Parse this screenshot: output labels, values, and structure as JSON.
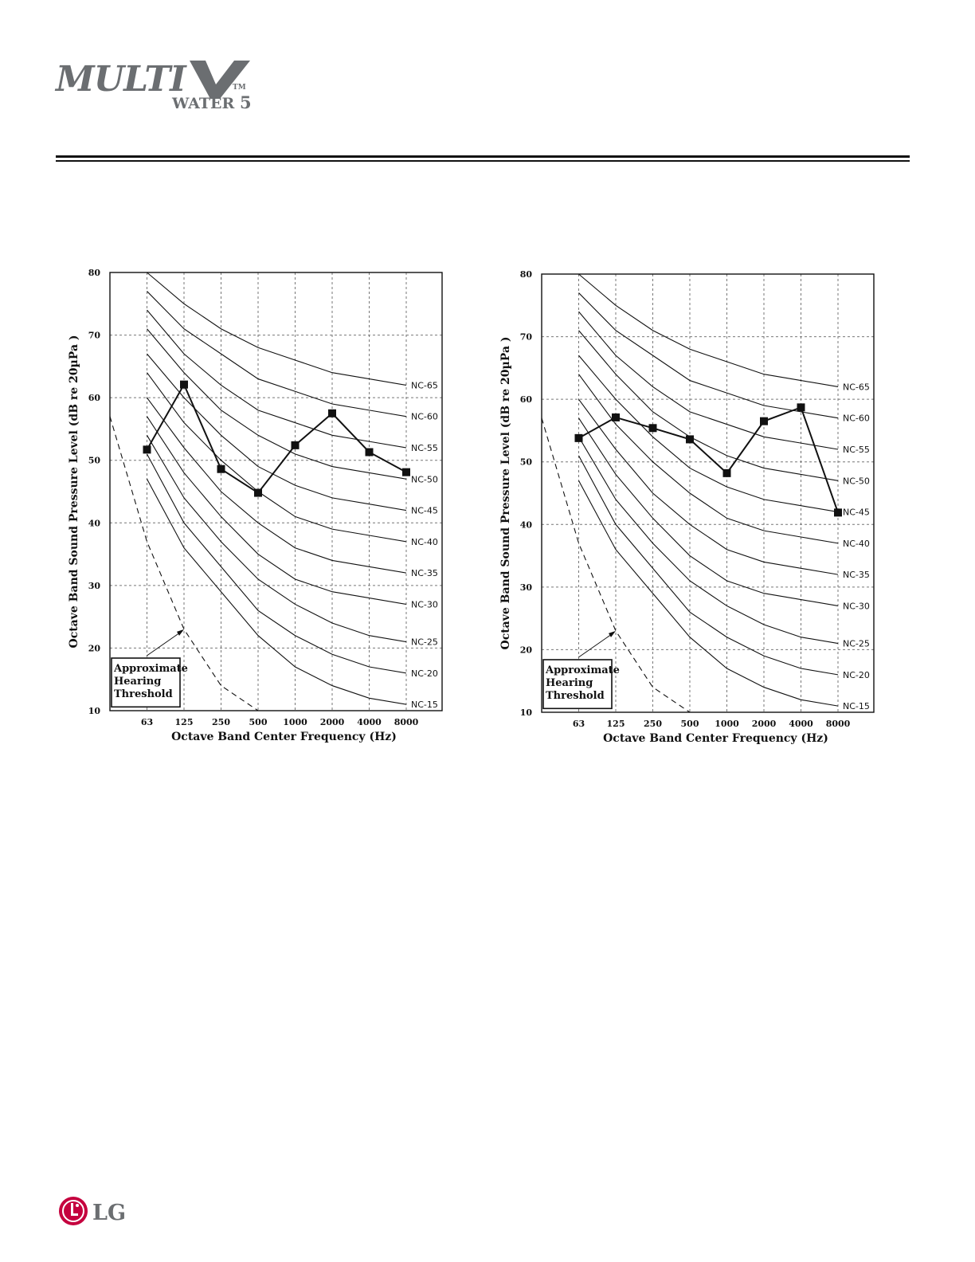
{
  "logo": {
    "brand": "MULTI V",
    "sub": "WATER 5",
    "tm": "TM"
  },
  "footer": {
    "brand": "LG"
  },
  "chart_data": [
    {
      "type": "line",
      "categories": [
        "63",
        "125",
        "250",
        "500",
        "1000",
        "2000",
        "4000",
        "8000"
      ],
      "xlabel": "Octave Band Center Frequency (Hz)",
      "ylabel": "Octave Band Sound Pressure Level (dB re 20µPa )",
      "ylim": [
        10,
        80
      ],
      "yticks": [
        "10",
        "20",
        "30",
        "40",
        "50",
        "60",
        "70",
        "80"
      ],
      "grid": true,
      "series": [
        {
          "values": [
            51.7,
            62.1,
            48.6,
            44.8,
            52.4,
            57.5,
            51.3,
            48.1
          ]
        }
      ],
      "nc_curves": [
        {
          "name": "NC-65",
          "values": [
            80,
            75,
            71,
            68,
            66,
            64,
            63,
            62
          ]
        },
        {
          "name": "NC-60",
          "values": [
            77,
            71,
            67,
            63,
            61,
            59,
            58,
            57
          ]
        },
        {
          "name": "NC-55",
          "values": [
            74,
            67,
            62,
            58,
            56,
            54,
            53,
            52
          ]
        },
        {
          "name": "NC-50",
          "values": [
            71,
            64,
            58,
            54,
            51,
            49,
            48,
            47
          ]
        },
        {
          "name": "NC-45",
          "values": [
            67,
            60,
            54,
            49,
            46,
            44,
            43,
            42
          ]
        },
        {
          "name": "NC-40",
          "values": [
            64,
            56,
            50,
            45,
            41,
            39,
            38,
            37
          ]
        },
        {
          "name": "NC-35",
          "values": [
            60,
            52,
            45,
            40,
            36,
            34,
            33,
            32
          ]
        },
        {
          "name": "NC-30",
          "values": [
            57,
            48,
            41,
            35,
            31,
            29,
            28,
            27
          ]
        },
        {
          "name": "NC-25",
          "values": [
            54,
            44,
            37,
            31,
            27,
            24,
            22,
            21
          ]
        },
        {
          "name": "NC-20",
          "values": [
            51,
            40,
            33,
            26,
            22,
            19,
            17,
            16
          ]
        },
        {
          "name": "NC-15",
          "values": [
            47,
            36,
            29,
            22,
            17,
            14,
            12,
            11
          ]
        }
      ],
      "hearing_threshold": {
        "values": [
          37,
          23,
          14,
          10
        ]
      },
      "annotation": {
        "lines": [
          "Approximate",
          "Hearing",
          "Threshold"
        ]
      }
    },
    {
      "type": "line",
      "categories": [
        "63",
        "125",
        "250",
        "500",
        "1000",
        "2000",
        "4000",
        "8000"
      ],
      "xlabel": "Octave Band Center Frequency (Hz)",
      "ylabel": "Octave Band Sound Pressure Level (dB re 20µPa )",
      "ylim": [
        10,
        80
      ],
      "yticks": [
        "10",
        "20",
        "30",
        "40",
        "50",
        "60",
        "70",
        "80"
      ],
      "grid": true,
      "series": [
        {
          "values": [
            53.8,
            57.1,
            55.4,
            53.6,
            48.2,
            56.5,
            58.7,
            41.9
          ]
        }
      ],
      "nc_curves": [
        {
          "name": "NC-65",
          "values": [
            80,
            75,
            71,
            68,
            66,
            64,
            63,
            62
          ]
        },
        {
          "name": "NC-60",
          "values": [
            77,
            71,
            67,
            63,
            61,
            59,
            58,
            57
          ]
        },
        {
          "name": "NC-55",
          "values": [
            74,
            67,
            62,
            58,
            56,
            54,
            53,
            52
          ]
        },
        {
          "name": "NC-50",
          "values": [
            71,
            64,
            58,
            54,
            51,
            49,
            48,
            47
          ]
        },
        {
          "name": "NC-45",
          "values": [
            67,
            60,
            54,
            49,
            46,
            44,
            43,
            42
          ]
        },
        {
          "name": "NC-40",
          "values": [
            64,
            56,
            50,
            45,
            41,
            39,
            38,
            37
          ]
        },
        {
          "name": "NC-35",
          "values": [
            60,
            52,
            45,
            40,
            36,
            34,
            33,
            32
          ]
        },
        {
          "name": "NC-30",
          "values": [
            57,
            48,
            41,
            35,
            31,
            29,
            28,
            27
          ]
        },
        {
          "name": "NC-25",
          "values": [
            54,
            44,
            37,
            31,
            27,
            24,
            22,
            21
          ]
        },
        {
          "name": "NC-20",
          "values": [
            51,
            40,
            33,
            26,
            22,
            19,
            17,
            16
          ]
        },
        {
          "name": "NC-15",
          "values": [
            47,
            36,
            29,
            22,
            17,
            14,
            12,
            11
          ]
        }
      ],
      "hearing_threshold": {
        "values": [
          37,
          23,
          14,
          10
        ]
      },
      "annotation": {
        "lines": [
          "Approximate",
          "Hearing",
          "Threshold"
        ]
      }
    }
  ]
}
